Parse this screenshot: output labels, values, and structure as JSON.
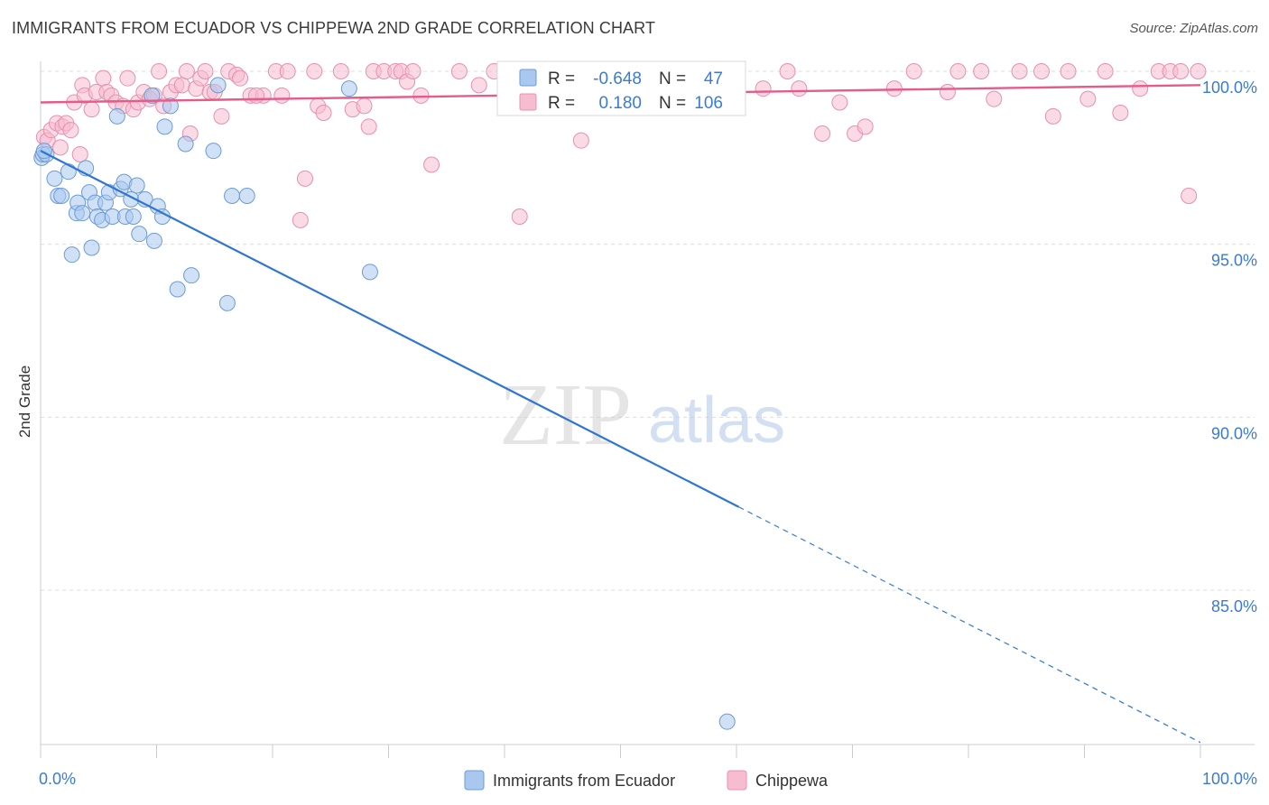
{
  "title": "IMMIGRANTS FROM ECUADOR VS CHIPPEWA 2ND GRADE CORRELATION CHART",
  "source": "Source: ZipAtlas.com",
  "watermark": {
    "zip": "ZIP",
    "atlas": "atlas"
  },
  "colors": {
    "blue_fill": "#aac8ef",
    "blue_stroke": "#6b9bd8",
    "blue_line": "#2f76d2",
    "pink_fill": "#f6bcd0",
    "pink_stroke": "#e890ad",
    "pink_line": "#e35c8a",
    "grid": "#dddddd",
    "axis_text": "#3a7bd5"
  },
  "legend": {
    "r_label": "R =",
    "n_label": "N =",
    "rows": [
      {
        "series": "Immigrants from Ecuador",
        "r": "-0.648",
        "n": "47"
      },
      {
        "series": "Chippewa",
        "r": "0.180",
        "n": "106"
      }
    ]
  },
  "chart_data": {
    "type": "scatter",
    "title": "IMMIGRANTS FROM ECUADOR VS CHIPPEWA 2ND GRADE CORRELATION CHART",
    "xlabel": "",
    "ylabel": "2nd Grade",
    "xlim": [
      0,
      100
    ],
    "ylim": [
      80.4,
      101.0
    ],
    "x_tick_labels": [
      "0.0%",
      "100.0%"
    ],
    "y_ticks": [
      100,
      95,
      90,
      85
    ],
    "y_tick_labels": [
      "100.0%",
      "95.0%",
      "90.0%",
      "85.0%"
    ],
    "grid": true,
    "legend_position": "top-center",
    "series": [
      {
        "name": "Immigrants from Ecuador",
        "r": -0.648,
        "n": 47,
        "trend": {
          "x_start": 0.0,
          "y_start": 97.7,
          "x_solid_end": 60.2,
          "x_end": 100.0,
          "y_end": 80.6
        },
        "points": [
          {
            "x": 0.1,
            "y": 97.5
          },
          {
            "x": 0.2,
            "y": 97.6
          },
          {
            "x": 0.5,
            "y": 97.6
          },
          {
            "x": 1.2,
            "y": 96.9
          },
          {
            "x": 1.5,
            "y": 96.4
          },
          {
            "x": 1.8,
            "y": 96.4
          },
          {
            "x": 2.4,
            "y": 97.1
          },
          {
            "x": 2.7,
            "y": 94.7
          },
          {
            "x": 3.1,
            "y": 95.9
          },
          {
            "x": 3.2,
            "y": 96.2
          },
          {
            "x": 3.6,
            "y": 95.9
          },
          {
            "x": 3.9,
            "y": 97.2
          },
          {
            "x": 4.2,
            "y": 96.5
          },
          {
            "x": 4.4,
            "y": 94.9
          },
          {
            "x": 4.7,
            "y": 96.2
          },
          {
            "x": 4.9,
            "y": 95.8
          },
          {
            "x": 5.3,
            "y": 95.7
          },
          {
            "x": 5.6,
            "y": 96.2
          },
          {
            "x": 5.9,
            "y": 96.5
          },
          {
            "x": 6.2,
            "y": 95.8
          },
          {
            "x": 6.6,
            "y": 98.7
          },
          {
            "x": 6.9,
            "y": 96.6
          },
          {
            "x": 7.2,
            "y": 96.8
          },
          {
            "x": 7.3,
            "y": 95.8
          },
          {
            "x": 7.8,
            "y": 96.3
          },
          {
            "x": 8.0,
            "y": 95.8
          },
          {
            "x": 8.3,
            "y": 96.7
          },
          {
            "x": 8.5,
            "y": 95.3
          },
          {
            "x": 9.0,
            "y": 96.3
          },
          {
            "x": 9.6,
            "y": 99.3
          },
          {
            "x": 9.8,
            "y": 95.1
          },
          {
            "x": 10.1,
            "y": 96.1
          },
          {
            "x": 10.5,
            "y": 95.8
          },
          {
            "x": 10.7,
            "y": 98.4
          },
          {
            "x": 11.2,
            "y": 99.0
          },
          {
            "x": 11.8,
            "y": 93.7
          },
          {
            "x": 12.5,
            "y": 97.9
          },
          {
            "x": 13.0,
            "y": 94.1
          },
          {
            "x": 14.9,
            "y": 97.7
          },
          {
            "x": 15.3,
            "y": 99.6
          },
          {
            "x": 16.1,
            "y": 93.3
          },
          {
            "x": 16.5,
            "y": 96.4
          },
          {
            "x": 17.8,
            "y": 96.4
          },
          {
            "x": 26.6,
            "y": 99.5
          },
          {
            "x": 28.4,
            "y": 94.2
          },
          {
            "x": 59.2,
            "y": 81.2
          },
          {
            "x": 0.3,
            "y": 97.7
          }
        ]
      },
      {
        "name": "Chippewa",
        "r": 0.18,
        "n": 106,
        "trend": {
          "x_start": 0.0,
          "y_start": 99.1,
          "x_end": 100.0,
          "y_end": 99.6
        },
        "points": [
          {
            "x": 0.3,
            "y": 98.1
          },
          {
            "x": 0.6,
            "y": 98.0
          },
          {
            "x": 0.9,
            "y": 98.3
          },
          {
            "x": 1.4,
            "y": 98.5
          },
          {
            "x": 1.7,
            "y": 97.8
          },
          {
            "x": 1.9,
            "y": 98.4
          },
          {
            "x": 2.2,
            "y": 98.5
          },
          {
            "x": 2.6,
            "y": 98.3
          },
          {
            "x": 2.9,
            "y": 99.1
          },
          {
            "x": 3.4,
            "y": 97.6
          },
          {
            "x": 3.6,
            "y": 99.6
          },
          {
            "x": 3.8,
            "y": 99.3
          },
          {
            "x": 4.4,
            "y": 98.9
          },
          {
            "x": 4.8,
            "y": 99.4
          },
          {
            "x": 5.4,
            "y": 99.8
          },
          {
            "x": 5.7,
            "y": 99.4
          },
          {
            "x": 6.1,
            "y": 99.3
          },
          {
            "x": 6.5,
            "y": 99.1
          },
          {
            "x": 7.1,
            "y": 99.0
          },
          {
            "x": 7.5,
            "y": 99.8
          },
          {
            "x": 8.0,
            "y": 98.9
          },
          {
            "x": 8.4,
            "y": 99.1
          },
          {
            "x": 8.9,
            "y": 99.4
          },
          {
            "x": 9.4,
            "y": 99.2
          },
          {
            "x": 9.8,
            "y": 99.3
          },
          {
            "x": 10.2,
            "y": 100.0
          },
          {
            "x": 10.6,
            "y": 99.0
          },
          {
            "x": 11.2,
            "y": 99.4
          },
          {
            "x": 11.7,
            "y": 99.6
          },
          {
            "x": 12.2,
            "y": 99.6
          },
          {
            "x": 12.6,
            "y": 100.0
          },
          {
            "x": 12.9,
            "y": 98.2
          },
          {
            "x": 13.4,
            "y": 99.5
          },
          {
            "x": 13.8,
            "y": 99.8
          },
          {
            "x": 14.2,
            "y": 100.0
          },
          {
            "x": 14.6,
            "y": 99.4
          },
          {
            "x": 15.0,
            "y": 99.4
          },
          {
            "x": 15.6,
            "y": 98.7
          },
          {
            "x": 16.2,
            "y": 100.0
          },
          {
            "x": 16.9,
            "y": 99.9
          },
          {
            "x": 17.2,
            "y": 99.8
          },
          {
            "x": 18.1,
            "y": 99.3
          },
          {
            "x": 19.2,
            "y": 99.3
          },
          {
            "x": 20.3,
            "y": 100.0
          },
          {
            "x": 20.8,
            "y": 99.3
          },
          {
            "x": 21.3,
            "y": 100.0
          },
          {
            "x": 22.4,
            "y": 95.7
          },
          {
            "x": 22.8,
            "y": 96.9
          },
          {
            "x": 23.6,
            "y": 100.0
          },
          {
            "x": 23.9,
            "y": 99.0
          },
          {
            "x": 24.4,
            "y": 98.8
          },
          {
            "x": 25.9,
            "y": 100.0
          },
          {
            "x": 26.9,
            "y": 98.9
          },
          {
            "x": 27.9,
            "y": 99.0
          },
          {
            "x": 28.3,
            "y": 98.4
          },
          {
            "x": 28.7,
            "y": 100.0
          },
          {
            "x": 29.6,
            "y": 100.0
          },
          {
            "x": 30.6,
            "y": 100.0
          },
          {
            "x": 31.1,
            "y": 100.0
          },
          {
            "x": 31.6,
            "y": 99.7
          },
          {
            "x": 32.1,
            "y": 100.0
          },
          {
            "x": 32.8,
            "y": 99.3
          },
          {
            "x": 33.7,
            "y": 97.3
          },
          {
            "x": 36.1,
            "y": 100.0
          },
          {
            "x": 37.8,
            "y": 99.6
          },
          {
            "x": 39.1,
            "y": 100.0
          },
          {
            "x": 41.3,
            "y": 95.8
          },
          {
            "x": 43.7,
            "y": 100.0
          },
          {
            "x": 45.8,
            "y": 100.0
          },
          {
            "x": 46.6,
            "y": 98.0
          },
          {
            "x": 48.1,
            "y": 100.0
          },
          {
            "x": 49.4,
            "y": 99.1
          },
          {
            "x": 50.6,
            "y": 100.0
          },
          {
            "x": 51.9,
            "y": 100.0
          },
          {
            "x": 54.1,
            "y": 99.6
          },
          {
            "x": 56.1,
            "y": 99.6
          },
          {
            "x": 57.6,
            "y": 100.0
          },
          {
            "x": 58.9,
            "y": 99.3
          },
          {
            "x": 60.1,
            "y": 100.0
          },
          {
            "x": 62.3,
            "y": 99.5
          },
          {
            "x": 64.4,
            "y": 100.0
          },
          {
            "x": 65.4,
            "y": 99.5
          },
          {
            "x": 67.4,
            "y": 98.2
          },
          {
            "x": 68.9,
            "y": 99.1
          },
          {
            "x": 70.2,
            "y": 98.2
          },
          {
            "x": 71.1,
            "y": 98.4
          },
          {
            "x": 73.6,
            "y": 99.5
          },
          {
            "x": 75.3,
            "y": 100.0
          },
          {
            "x": 78.2,
            "y": 99.4
          },
          {
            "x": 79.1,
            "y": 100.0
          },
          {
            "x": 81.1,
            "y": 100.0
          },
          {
            "x": 82.2,
            "y": 99.2
          },
          {
            "x": 84.4,
            "y": 100.0
          },
          {
            "x": 86.3,
            "y": 100.0
          },
          {
            "x": 87.3,
            "y": 98.7
          },
          {
            "x": 88.6,
            "y": 100.0
          },
          {
            "x": 90.3,
            "y": 99.2
          },
          {
            "x": 91.8,
            "y": 100.0
          },
          {
            "x": 93.1,
            "y": 98.8
          },
          {
            "x": 94.8,
            "y": 99.5
          },
          {
            "x": 96.4,
            "y": 100.0
          },
          {
            "x": 97.4,
            "y": 100.0
          },
          {
            "x": 98.3,
            "y": 100.0
          },
          {
            "x": 99.8,
            "y": 100.0
          },
          {
            "x": 99.0,
            "y": 96.4
          },
          {
            "x": 18.6,
            "y": 99.3
          }
        ]
      }
    ]
  }
}
